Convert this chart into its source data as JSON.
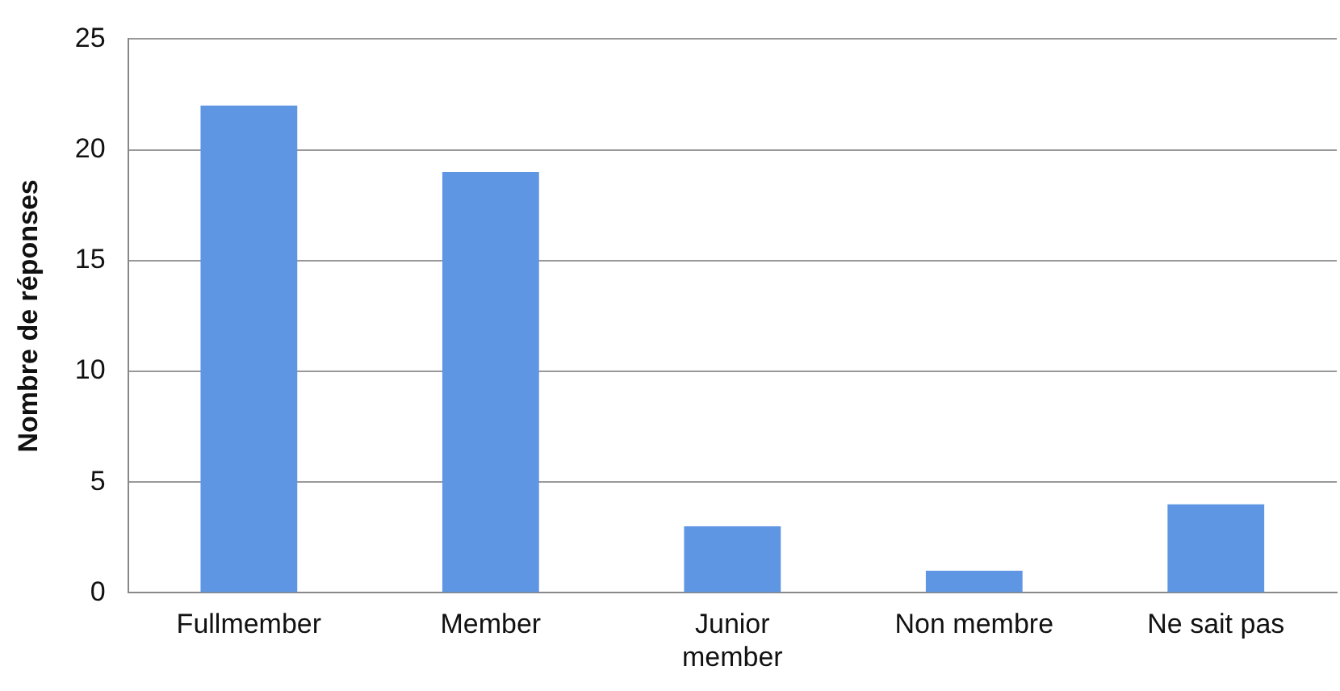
{
  "chart_data": {
    "type": "bar",
    "ylabel": "Nombre de réponses",
    "categories": [
      "Fullmember",
      "Member",
      "Junior member",
      "Non membre",
      "Ne sait pas"
    ],
    "values": [
      22,
      19,
      3,
      1,
      4
    ],
    "color": "#5e96e3",
    "ylim": [
      0,
      25
    ],
    "yticks": [
      0,
      5,
      10,
      15,
      20,
      25
    ],
    "grid": "y",
    "legend": false
  }
}
